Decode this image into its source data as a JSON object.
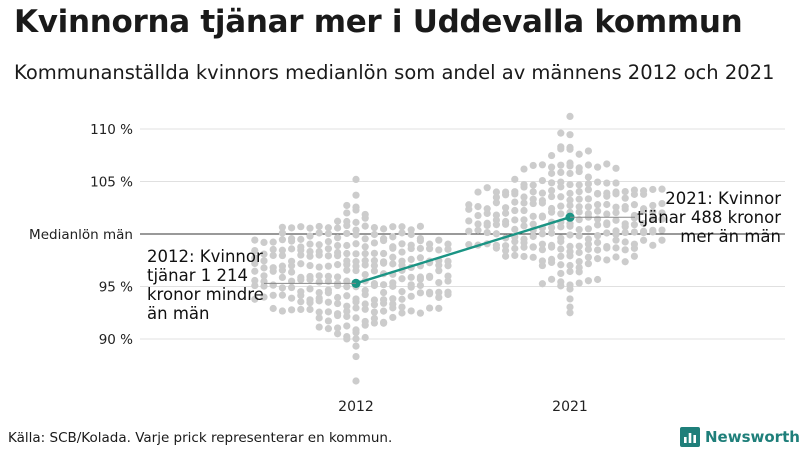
{
  "title": "Kvinnorna tjänar mer i Uddevalla kommun",
  "subtitle": "Kommunanställda kvinnors medianlön som andel av männens 2012 och 2021",
  "footer": {
    "source": "Källa: SCB/Kolada. Varje prick representerar en kommun."
  },
  "brand": {
    "name": "Newsworthy"
  },
  "colors": {
    "dots": "#cccccc",
    "highlight": "#1a9484",
    "reference": "#333333",
    "grid": "#e0e0e0",
    "brand": "#1f7f7a"
  },
  "chart_data": {
    "type": "scatter",
    "variant": "beeswarm",
    "categories": [
      "2012",
      "2021"
    ],
    "ylabel": "",
    "ylim": [
      86,
      112
    ],
    "y_ticks": [
      {
        "value": 90,
        "label": "90 %"
      },
      {
        "value": 95,
        "label": "95 %"
      },
      {
        "value": 100,
        "label": "Medianlön män"
      },
      {
        "value": 105,
        "label": "105 %"
      },
      {
        "value": 110,
        "label": "110 %"
      }
    ],
    "reference_value": 100,
    "swarms": [
      {
        "category": "2012",
        "center": 96.2,
        "min": 86.0,
        "max": 105.2,
        "n": 290
      },
      {
        "category": "2021",
        "center": 101.5,
        "min": 92.5,
        "max": 111.2,
        "n": 290
      }
    ],
    "highlight": {
      "points": [
        {
          "x": "2012",
          "y": 95.3
        },
        {
          "x": "2021",
          "y": 101.6
        }
      ]
    },
    "annotations": [
      {
        "x": "2012",
        "lines": [
          "2012: Kvinnor",
          "tjänar 1 214",
          "kronor mindre",
          "än män"
        ]
      },
      {
        "x": "2021",
        "lines": [
          "2021: Kvinnor",
          "tjänar 488 kronor",
          "mer än män"
        ]
      }
    ]
  }
}
